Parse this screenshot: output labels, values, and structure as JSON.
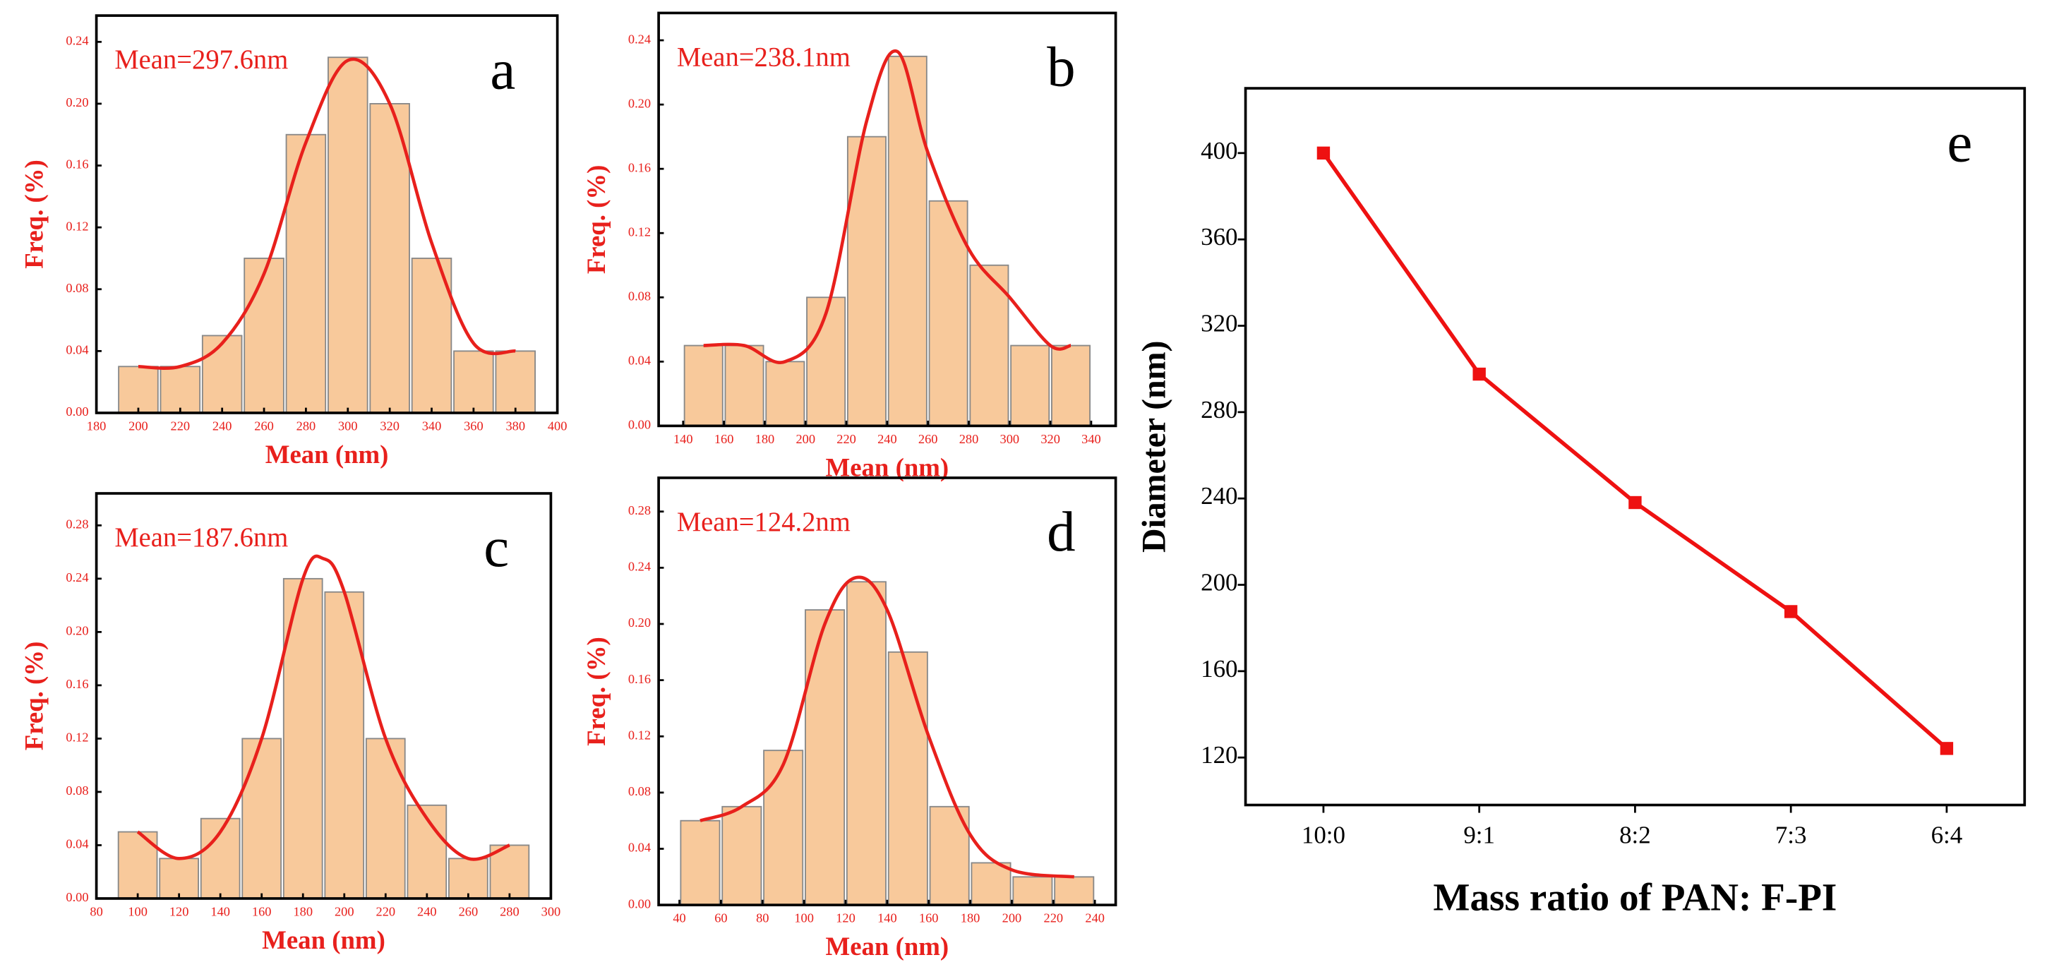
{
  "chart_data": [
    {
      "type": "histogram",
      "panel_label": "a",
      "annotation": "Mean=297.6nm",
      "xlabel": "Mean (nm)",
      "ylabel": "Freq. (%)",
      "bins": [
        190,
        210,
        230,
        250,
        270,
        290,
        310,
        330,
        350,
        370,
        390
      ],
      "values": [
        0.03,
        0.03,
        0.05,
        0.1,
        0.18,
        0.23,
        0.2,
        0.1,
        0.04,
        0.04
      ],
      "color": "#f8c99b",
      "curve_color": "#e8201c",
      "curve": {
        "x": [
          200,
          220,
          240,
          260,
          280,
          300,
          320,
          340,
          360,
          380
        ],
        "values": [
          0.03,
          0.03,
          0.045,
          0.09,
          0.175,
          0.228,
          0.2,
          0.11,
          0.045,
          0.04
        ]
      },
      "xlim": [
        180,
        400
      ],
      "xticks": [
        180,
        200,
        220,
        240,
        260,
        280,
        300,
        320,
        340,
        360,
        380,
        400
      ],
      "ylim": [
        0,
        0.257
      ],
      "yticks": [
        {
          "value": 0,
          "label": "0.00"
        },
        {
          "value": 0.04,
          "label": "0.04"
        },
        {
          "value": 0.08,
          "label": "0.08"
        },
        {
          "value": 0.12,
          "label": "0.12"
        },
        {
          "value": 0.16,
          "label": "0.16"
        },
        {
          "value": 0.2,
          "label": "0.20"
        },
        {
          "value": 0.24,
          "label": "0.24"
        }
      ]
    },
    {
      "type": "histogram",
      "panel_label": "b",
      "annotation": "Mean=238.1nm",
      "xlabel": "Mean (nm)",
      "ylabel": "Freq. (%)",
      "bins": [
        140,
        160,
        180,
        200,
        220,
        240,
        260,
        280,
        300,
        320,
        340
      ],
      "values": [
        0.05,
        0.05,
        0.04,
        0.08,
        0.18,
        0.23,
        0.14,
        0.1,
        0.05,
        0.05
      ],
      "color": "#f8c99b",
      "curve_color": "#e8201c",
      "curve": {
        "x": [
          150,
          170,
          190,
          210,
          230,
          245,
          260,
          280,
          300,
          320,
          330
        ],
        "values": [
          0.05,
          0.05,
          0.04,
          0.07,
          0.19,
          0.233,
          0.17,
          0.11,
          0.08,
          0.05,
          0.05
        ]
      },
      "xlim": [
        128,
        352
      ],
      "xticks": [
        140,
        160,
        180,
        200,
        220,
        240,
        260,
        280,
        300,
        320,
        340
      ],
      "ylim": [
        0,
        0.257
      ],
      "yticks": [
        {
          "value": 0,
          "label": "0.00"
        },
        {
          "value": 0.04,
          "label": "0.04"
        },
        {
          "value": 0.08,
          "label": "0.08"
        },
        {
          "value": 0.12,
          "label": "0.12"
        },
        {
          "value": 0.16,
          "label": "0.16"
        },
        {
          "value": 0.2,
          "label": "0.20"
        },
        {
          "value": 0.24,
          "label": "0.24"
        }
      ]
    },
    {
      "type": "histogram",
      "panel_label": "c",
      "annotation": "Mean=187.6nm",
      "xlabel": "Mean (nm)",
      "ylabel": "Freq. (%)",
      "bins": [
        90,
        110,
        130,
        150,
        170,
        190,
        210,
        230,
        250,
        270,
        290
      ],
      "values": [
        0.05,
        0.03,
        0.06,
        0.12,
        0.24,
        0.23,
        0.12,
        0.07,
        0.03,
        0.04
      ],
      "color": "#f8c99b",
      "curve_color": "#e8201c",
      "curve": {
        "x": [
          100,
          120,
          140,
          160,
          180,
          190,
          200,
          220,
          240,
          260,
          280
        ],
        "values": [
          0.05,
          0.03,
          0.05,
          0.12,
          0.24,
          0.255,
          0.23,
          0.12,
          0.06,
          0.03,
          0.04
        ]
      },
      "xlim": [
        80,
        300
      ],
      "xticks": [
        80,
        100,
        120,
        140,
        160,
        180,
        200,
        220,
        240,
        260,
        280,
        300
      ],
      "ylim": [
        0,
        0.304
      ],
      "yticks": [
        {
          "value": 0,
          "label": "0.00"
        },
        {
          "value": 0.04,
          "label": "0.04"
        },
        {
          "value": 0.08,
          "label": "0.08"
        },
        {
          "value": 0.12,
          "label": "0.12"
        },
        {
          "value": 0.16,
          "label": "0.16"
        },
        {
          "value": 0.2,
          "label": "0.20"
        },
        {
          "value": 0.24,
          "label": "0.24"
        },
        {
          "value": 0.28,
          "label": "0.28"
        }
      ]
    },
    {
      "type": "histogram",
      "panel_label": "d",
      "annotation": "Mean=124.2nm",
      "xlabel": "Mean (nm)",
      "ylabel": "Freq. (%)",
      "bins": [
        40,
        60,
        80,
        100,
        120,
        140,
        160,
        180,
        200,
        220,
        240
      ],
      "values": [
        0.06,
        0.07,
        0.11,
        0.21,
        0.23,
        0.18,
        0.07,
        0.03,
        0.02,
        0.02
      ],
      "color": "#f8c99b",
      "curve_color": "#e8201c",
      "curve": {
        "x": [
          50,
          70,
          90,
          110,
          125,
          140,
          160,
          180,
          200,
          230
        ],
        "values": [
          0.06,
          0.07,
          0.1,
          0.2,
          0.233,
          0.21,
          0.12,
          0.05,
          0.025,
          0.02
        ]
      },
      "xlim": [
        30,
        250
      ],
      "xticks": [
        40,
        60,
        80,
        100,
        120,
        140,
        160,
        180,
        200,
        220,
        240
      ],
      "ylim": [
        0,
        0.304
      ],
      "yticks": [
        {
          "value": 0,
          "label": "0.00"
        },
        {
          "value": 0.04,
          "label": "0.04"
        },
        {
          "value": 0.08,
          "label": "0.08"
        },
        {
          "value": 0.12,
          "label": "0.12"
        },
        {
          "value": 0.16,
          "label": "0.16"
        },
        {
          "value": 0.2,
          "label": "0.20"
        },
        {
          "value": 0.24,
          "label": "0.24"
        },
        {
          "value": 0.28,
          "label": "0.28"
        }
      ]
    },
    {
      "type": "line",
      "panel_label": "e",
      "xlabel": "Mass ratio of PAN: F-PI",
      "ylabel": "Diameter (nm)",
      "categories": [
        "10:0",
        "9:1",
        "8:2",
        "7:3",
        "6:4"
      ],
      "values": [
        400,
        297.6,
        238.1,
        187.6,
        124.2
      ],
      "color": "#ee1111",
      "ylim": [
        98,
        430
      ],
      "yticks": [
        120,
        160,
        200,
        240,
        280,
        320,
        360,
        400
      ]
    }
  ]
}
